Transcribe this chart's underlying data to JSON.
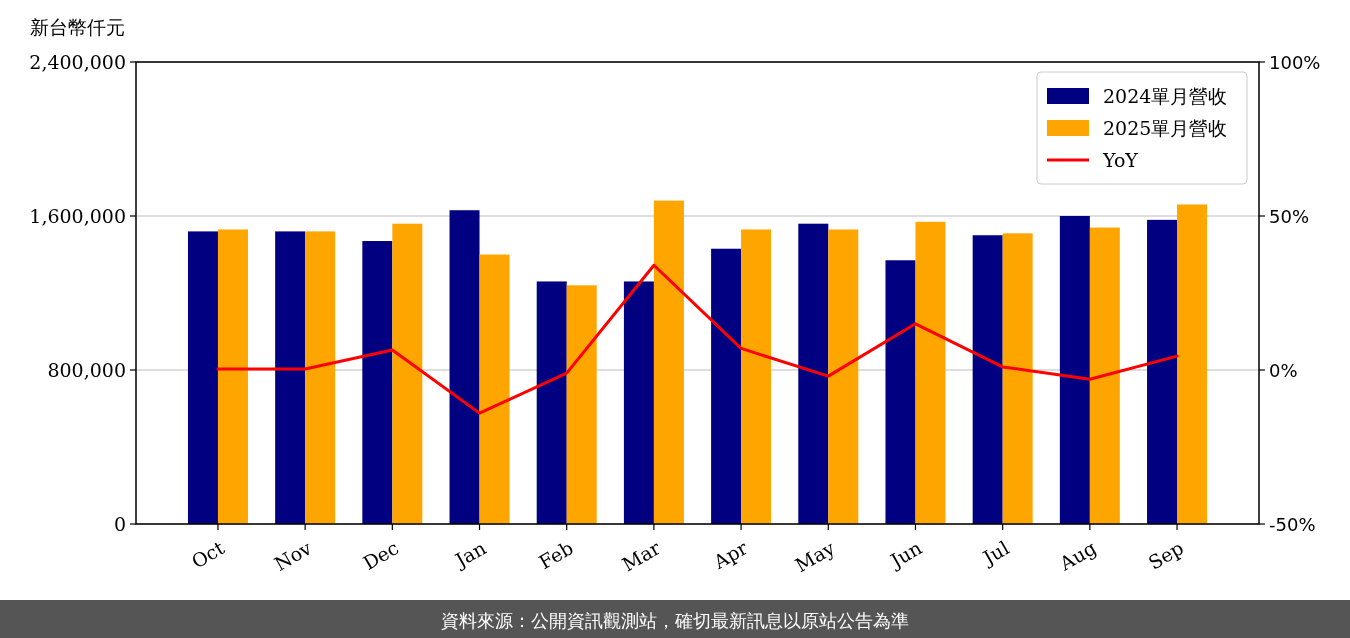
{
  "chart_data": {
    "type": "bar",
    "ylabel": "新台幣仟元",
    "categories": [
      "Oct",
      "Nov",
      "Dec",
      "Jan",
      "Feb",
      "Mar",
      "Apr",
      "May",
      "Jun",
      "Jul",
      "Aug",
      "Sep"
    ],
    "series": [
      {
        "name": "2024單月營收",
        "color": "#000080",
        "values": [
          1520000,
          1520000,
          1470000,
          1630000,
          1260000,
          1260000,
          1430000,
          1560000,
          1370000,
          1500000,
          1600000,
          1580000
        ]
      },
      {
        "name": "2025單月營收",
        "color": "#ffa500",
        "values": [
          1530000,
          1520000,
          1560000,
          1400000,
          1240000,
          1680000,
          1530000,
          1530000,
          1570000,
          1510000,
          1540000,
          1660000
        ]
      },
      {
        "name": "YoY",
        "type": "line",
        "axis": "y2",
        "color": "#ff0000",
        "values": [
          0.3,
          0.3,
          6.5,
          -14,
          -1,
          34,
          7,
          -2,
          15,
          1,
          -3,
          4.5
        ]
      }
    ],
    "ylim": [
      0,
      2400000
    ],
    "yticks": [
      {
        "value": 0,
        "label": "0"
      },
      {
        "value": 800000,
        "label": "800,000"
      },
      {
        "value": 1600000,
        "label": "1,600,000"
      },
      {
        "value": 2400000,
        "label": "2,400,000"
      }
    ],
    "y2lim": [
      -50,
      100
    ],
    "y2ticks": [
      {
        "value": -50,
        "label": "-50%"
      },
      {
        "value": 0,
        "label": "0%"
      },
      {
        "value": 50,
        "label": "50%"
      },
      {
        "value": 100,
        "label": "100%"
      }
    ],
    "grid": "y",
    "legend": "top right",
    "annotations": [
      "資料來源：公開資訊觀測站，確切最新訊息以原站公告為準"
    ]
  }
}
